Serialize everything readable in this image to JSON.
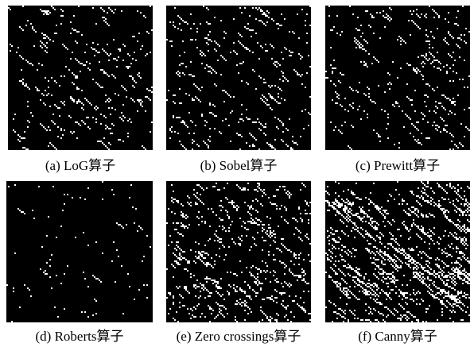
{
  "figure": {
    "panels": [
      {
        "caption": "(a) LoG算子"
      },
      {
        "caption": "(b) Sobel算子"
      },
      {
        "caption": "(c) Prewitt算子"
      },
      {
        "caption": "(d) Roberts算子"
      },
      {
        "caption": "(e) Zero crossings算子"
      },
      {
        "caption": "(f) Canny算子"
      }
    ]
  }
}
